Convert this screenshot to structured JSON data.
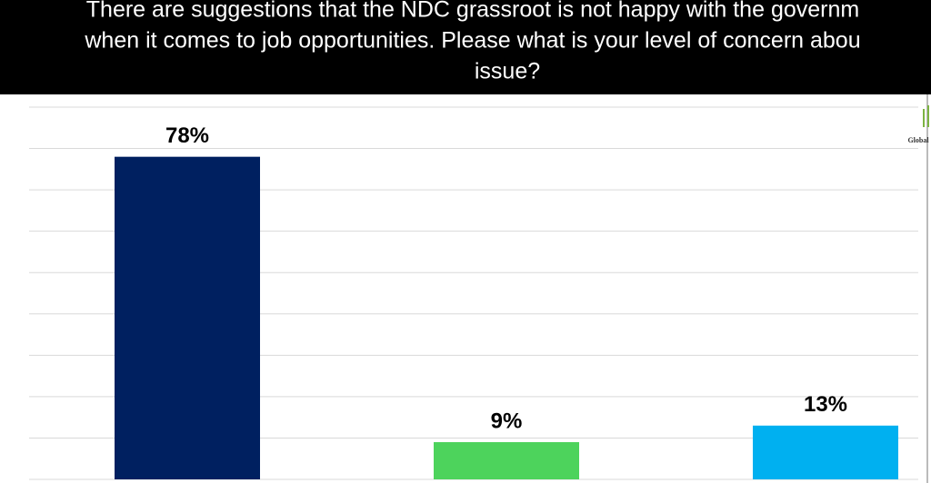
{
  "chart_data": {
    "type": "bar",
    "title": [
      "There are suggestions that the NDC grassroot is not happy with the governm",
      "when it comes to job opportunities. Please what is your level of concern abou",
      "issue?"
    ],
    "logo": "Global",
    "categories": [
      null,
      null,
      null
    ],
    "series": [
      {
        "colors": [
          "#002060",
          "#4dd35c",
          "#00b0f0"
        ],
        "values": [
          78,
          9,
          13
        ],
        "value_labels": [
          "78%",
          "9%",
          "13%"
        ]
      }
    ],
    "ylim": [
      0,
      90
    ],
    "yticks": [
      0,
      10,
      20,
      30,
      40,
      50,
      60,
      70,
      80,
      90
    ],
    "grid": true
  }
}
